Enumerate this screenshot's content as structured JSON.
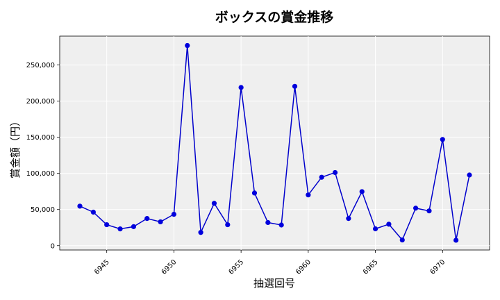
{
  "chart_data": {
    "type": "line",
    "title": "ボックスの賞金推移",
    "xlabel": "抽選回号",
    "ylabel": "賞金額（円）",
    "x": [
      6943,
      6944,
      6945,
      6946,
      6947,
      6948,
      6949,
      6950,
      6951,
      6952,
      6953,
      6954,
      6955,
      6956,
      6957,
      6958,
      6959,
      6960,
      6961,
      6962,
      6963,
      6964,
      6965,
      6966,
      6967,
      6968,
      6969,
      6970,
      6971,
      6972
    ],
    "series": [
      {
        "values": [
          54700,
          46400,
          29000,
          23200,
          26300,
          37600,
          33000,
          43400,
          277000,
          18300,
          58600,
          29000,
          218900,
          72900,
          32000,
          28600,
          220500,
          70200,
          94700,
          101200,
          37600,
          74800,
          23300,
          29700,
          7900,
          51900,
          48100,
          147000,
          7500,
          97800
        ]
      }
    ],
    "xticks": [
      6945,
      6950,
      6955,
      6960,
      6965,
      6970
    ],
    "xtick_labels": [
      "6945",
      "6950",
      "6955",
      "6960",
      "6965",
      "6970"
    ],
    "yticks": [
      0,
      50000,
      100000,
      150000,
      200000,
      250000
    ],
    "ytick_labels": [
      "0",
      "50,000",
      "100,000",
      "150,000",
      "200,000",
      "250,000"
    ],
    "xlim": [
      6941.5,
      6973.5
    ],
    "ylim": [
      -6000,
      290000
    ],
    "grid": true,
    "line_color": "#0000cc",
    "marker_color": "#0000dd",
    "plot_background": "#efefef"
  }
}
